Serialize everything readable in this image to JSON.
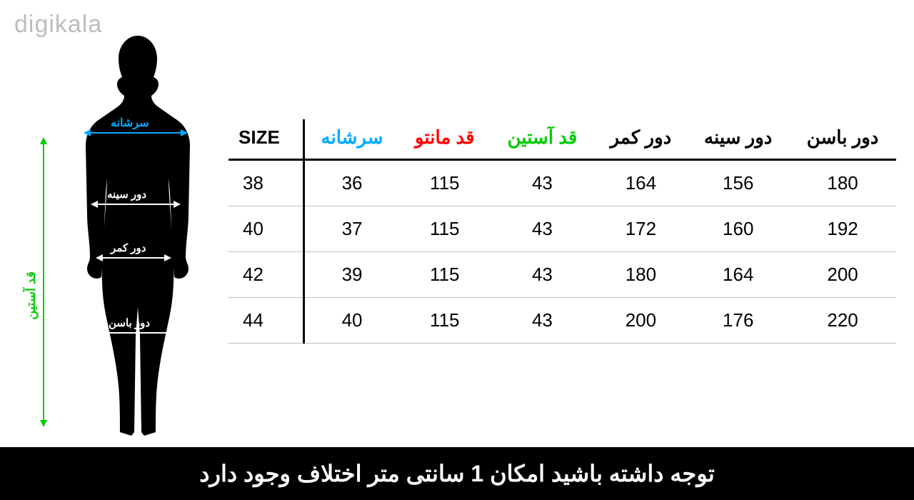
{
  "logo_text": "digikala",
  "figure": {
    "sleeve_label": "قد آستین",
    "shoulder_label": "سرشانه",
    "bust_label": "دور سینه",
    "waist_label": "دور کمر",
    "hip_label": "دور باسن"
  },
  "table": {
    "type": "table",
    "background_color": "#ffffff",
    "text_color": "#000000",
    "row_border_color": "#bfbfbf",
    "header_border_color": "#000000",
    "fontsize": 26,
    "columns": [
      {
        "label": "SIZE",
        "color": "#000000"
      },
      {
        "label": "سرشانه",
        "color": "#00aaff"
      },
      {
        "label": "قد مانتو",
        "color": "#ff0000"
      },
      {
        "label": "قد آستین",
        "color": "#00cc00"
      },
      {
        "label": "دور کمر",
        "color": "#000000"
      },
      {
        "label": "دور سینه",
        "color": "#000000"
      },
      {
        "label": "دور باسن",
        "color": "#000000"
      }
    ],
    "rows": [
      [
        "38",
        "36",
        "115",
        "43",
        "164",
        "156",
        "180"
      ],
      [
        "40",
        "37",
        "115",
        "43",
        "172",
        "160",
        "192"
      ],
      [
        "42",
        "39",
        "115",
        "43",
        "180",
        "164",
        "200"
      ],
      [
        "44",
        "40",
        "115",
        "43",
        "200",
        "176",
        "220"
      ]
    ]
  },
  "footer": {
    "text": "توجه داشته باشید امکان 1 سانتی متر اختلاف وجود دارد",
    "background_color": "#000000",
    "text_color": "#ffffff",
    "fontsize": 32
  },
  "colors": {
    "shoulder": "#00aaff",
    "sleeve": "#00cc00",
    "coat_length": "#ff0000",
    "body_lines": "#ffffff",
    "silhouette": "#000000"
  }
}
